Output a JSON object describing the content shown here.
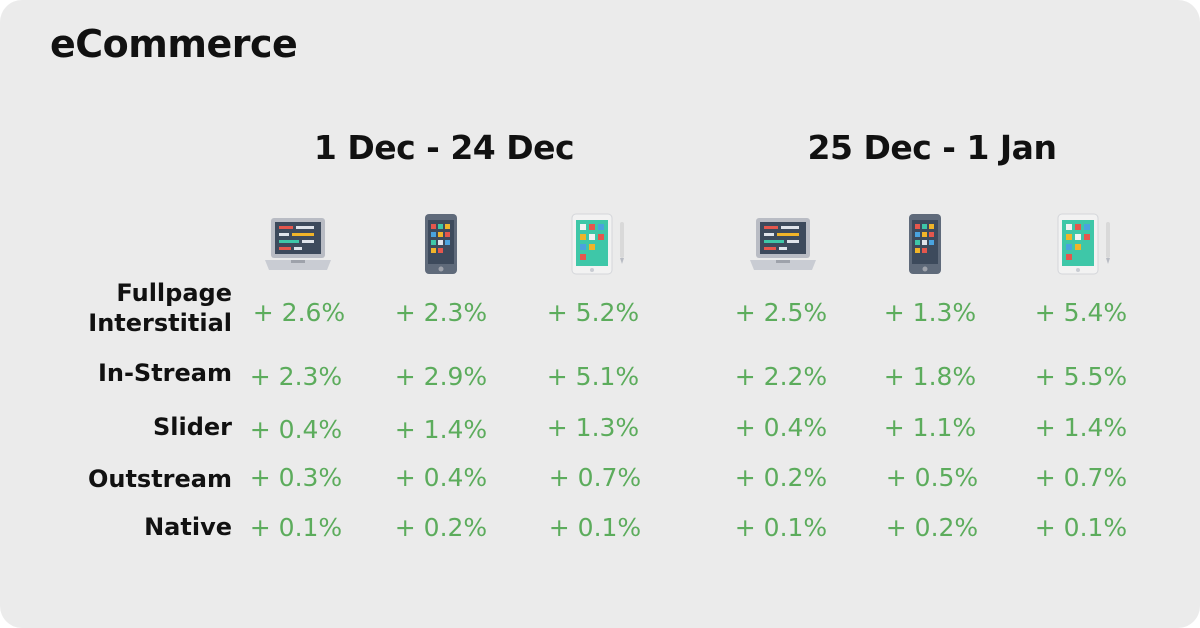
{
  "title": "eCommerce",
  "colors": {
    "background": "#ebebeb",
    "value_green": "#5cac5c",
    "text": "#111111"
  },
  "periods": [
    "1 Dec - 24 Dec",
    "25 Dec - 1 Jan"
  ],
  "device_icons": [
    "laptop-icon",
    "smartphone-icon",
    "tablet-icon"
  ],
  "rows": [
    {
      "label": "Fullpage Interstitial",
      "values": [
        "+ 2.6%",
        "+ 2.3%",
        "+ 5.2%",
        "+ 2.5%",
        "+ 1.3%",
        "+ 5.4%"
      ]
    },
    {
      "label": "In-Stream",
      "values": [
        "+ 2.3%",
        "+ 2.9%",
        "+ 5.1%",
        "+ 2.2%",
        "+ 1.8%",
        "+ 5.5%"
      ]
    },
    {
      "label": "Slider",
      "values": [
        "+ 0.4%",
        "+ 1.4%",
        "+ 1.3%",
        "+ 0.4%",
        "+ 1.1%",
        "+ 1.4%"
      ]
    },
    {
      "label": "Outstream",
      "values": [
        "+ 0.3%",
        "+ 0.4%",
        "+ 0.7%",
        "+ 0.2%",
        "+ 0.5%",
        "+ 0.7%"
      ]
    },
    {
      "label": "Native",
      "values": [
        "+ 0.1%",
        "+ 0.2%",
        "+ 0.1%",
        "+ 0.1%",
        "+ 0.2%",
        "+ 0.1%"
      ]
    }
  ]
}
